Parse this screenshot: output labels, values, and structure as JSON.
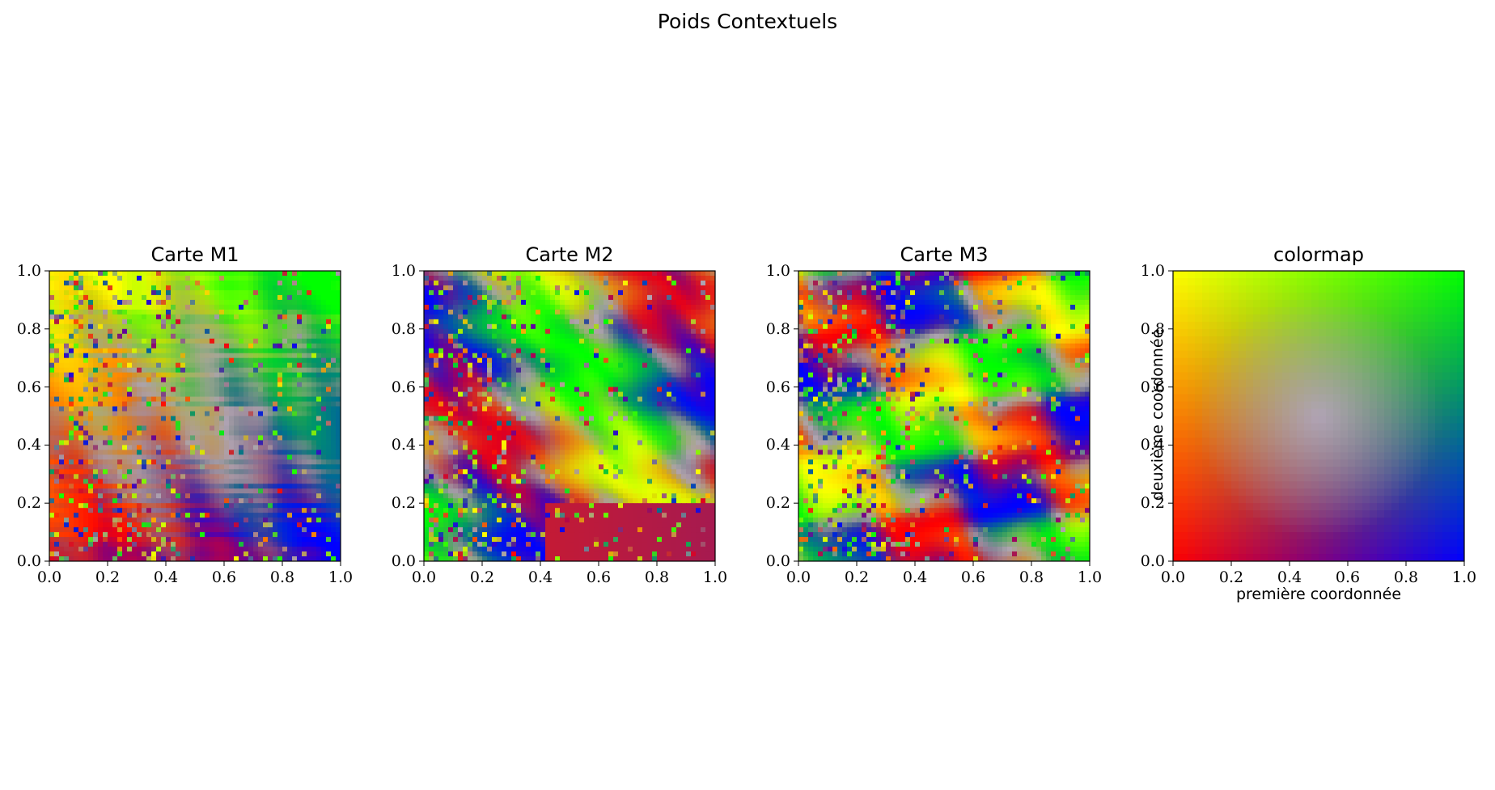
{
  "figure": {
    "suptitle": "Poids Contextuels"
  },
  "chart_data": [
    {
      "type": "heatmap",
      "title": "Carte M1",
      "xlabel": "",
      "ylabel": "",
      "xlim": [
        0.0,
        1.0
      ],
      "ylim": [
        0.0,
        1.0
      ],
      "xticks": [
        "0.0",
        "0.2",
        "0.4",
        "0.6",
        "0.8",
        "1.0"
      ],
      "yticks": [
        "0.0",
        "0.2",
        "0.4",
        "0.6",
        "0.8",
        "1.0"
      ],
      "grid": false,
      "colors": {
        "corner_bottom_left": "#ff0000",
        "corner_bottom_right": "#0000ff",
        "corner_top_left": "#ffff00",
        "corner_top_right": "#00ff00",
        "center": "#b6a6d6"
      },
      "dominant_colors": [
        "#ffb300",
        "#ff2a2a",
        "#4cff1a",
        "#7a1aa8",
        "#2424ff"
      ]
    },
    {
      "type": "heatmap",
      "title": "Carte M2",
      "xlabel": "",
      "ylabel": "",
      "xlim": [
        0.0,
        1.0
      ],
      "ylim": [
        0.0,
        1.0
      ],
      "xticks": [
        "0.0",
        "0.2",
        "0.4",
        "0.6",
        "0.8",
        "1.0"
      ],
      "yticks": [
        "0.0",
        "0.2",
        "0.4",
        "0.6",
        "0.8",
        "1.0"
      ],
      "grid": false,
      "dominant_colors": [
        "#1a1aff",
        "#5a1aa0",
        "#4cff1a",
        "#ffff00",
        "#ff2a00"
      ]
    },
    {
      "type": "heatmap",
      "title": "Carte M3",
      "xlabel": "",
      "ylabel": "",
      "xlim": [
        0.0,
        1.0
      ],
      "ylim": [
        0.0,
        1.0
      ],
      "xticks": [
        "0.0",
        "0.2",
        "0.4",
        "0.6",
        "0.8",
        "1.0"
      ],
      "yticks": [
        "0.0",
        "0.2",
        "0.4",
        "0.6",
        "0.8",
        "1.0"
      ],
      "grid": false,
      "dominant_colors": [
        "#30ff20",
        "#1a1aff",
        "#ff2020",
        "#ffff00",
        "#a0a0d0"
      ]
    },
    {
      "type": "heatmap",
      "title": "colormap",
      "xlabel": "première coordonnée",
      "ylabel": "deuxième coordonnée",
      "xlim": [
        0.0,
        1.0
      ],
      "ylim": [
        0.0,
        1.0
      ],
      "xticks": [
        "0.0",
        "0.2",
        "0.4",
        "0.6",
        "0.8",
        "1.0"
      ],
      "yticks": [
        "0.0",
        "0.2",
        "0.4",
        "0.6",
        "0.8",
        "1.0"
      ],
      "grid": false,
      "colors": {
        "corner_bottom_left": "#ff0000",
        "corner_bottom_right": "#0000ff",
        "corner_top_left": "#ffff00",
        "corner_top_right": "#00ff00",
        "center": "#c0b0dc"
      }
    }
  ]
}
